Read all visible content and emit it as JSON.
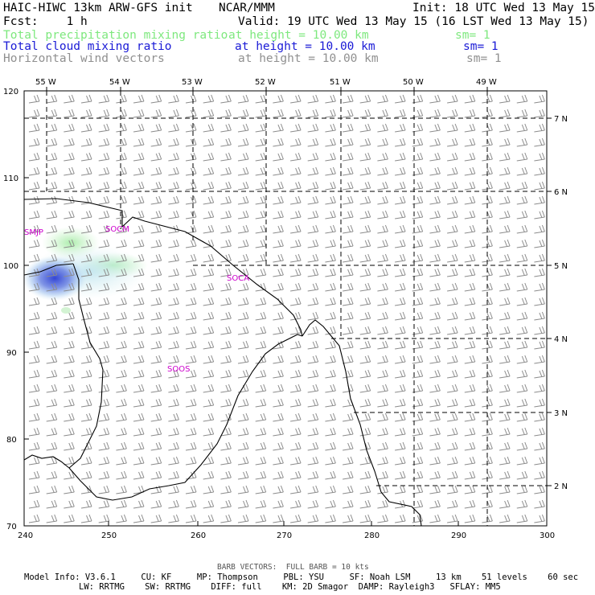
{
  "header": {
    "title_left": "HAIC-HIWC 13km ARW-GFS init",
    "title_mid": "NCAR/MMM",
    "init": "Init: 18 UTC Wed 13 May 15",
    "fcst": "Fcst:    1 h",
    "valid": "Valid: 19 UTC Wed 13 May 15 (16 LST Wed 13 May 15)",
    "fields": [
      {
        "name": "Total precipitation mixing ratio",
        "level": "at height = 10.00 km",
        "sm": "sm= 1",
        "color": "#7ee87e"
      },
      {
        "name": "Total cloud mixing ratio",
        "level": "at height = 10.00 km",
        "sm": "sm= 1",
        "color": "#1a1ad6"
      },
      {
        "name": "Horizontal wind vectors",
        "level": "at height = 10.00 km",
        "sm": "sm= 1",
        "color": "#909090"
      }
    ]
  },
  "map": {
    "top_lon_labels": [
      "55 W",
      "54 W",
      "53 W",
      "52 W",
      "51 W",
      "50 W",
      "49 W"
    ],
    "right_lat_labels": [
      "7 N",
      "6 N",
      "5 N",
      "4 N",
      "3 N",
      "2 N"
    ],
    "bottom_ticks": [
      "240",
      "250",
      "260",
      "270",
      "280",
      "290",
      "300"
    ],
    "left_ticks": [
      "70",
      "80",
      "90",
      "100",
      "110",
      "120"
    ],
    "stations": [
      "SMJP",
      "SOCM",
      "SOCA",
      "SOOS"
    ],
    "colors": {
      "coast": "#000000",
      "barb": "#8c8c8c",
      "precip": "#b9f0b9",
      "cloud": "#3a4fd8",
      "station": "#cc00cc"
    }
  },
  "footer": {
    "barb_note": "BARB VECTORS:  FULL BARB = 10 kts",
    "line1": "Model Info: V3.6.1     CU: KF     MP: Thompson     PBL: YSU     SF: Noah LSM     13 km    51 levels    60 sec",
    "line2": "LW: RRTMG    SW: RRTMG    DIFF: full    KM: 2D Smagor  DAMP: Rayleigh3   SFLAY: MM5"
  }
}
